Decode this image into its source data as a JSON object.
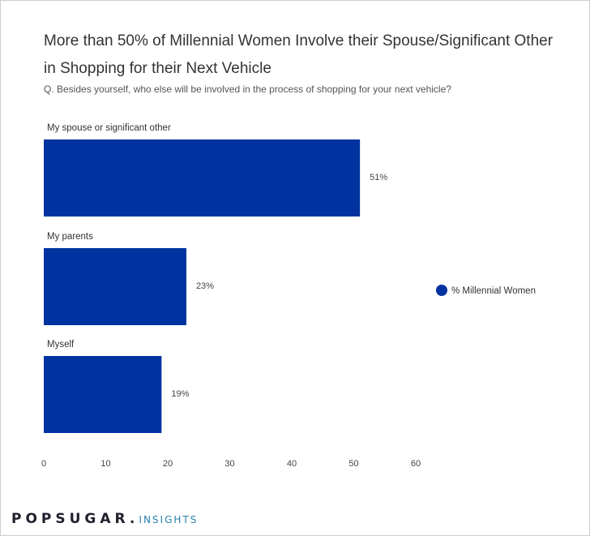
{
  "title": "More than 50% of Millennial Women Involve their Spouse/Significant Other in Shopping for their Next Vehicle",
  "subtitle": "Q. Besides yourself, who else will be involved in the process of shopping for your next vehicle?",
  "logo": {
    "main": "POPSUGAR.",
    "sub": "INSIGHTS"
  },
  "colors": {
    "bar": "#0033A0",
    "text": "#333333",
    "logo_main": "#1f1f2e",
    "logo_sub": "#2a7fb0"
  },
  "chart_data": {
    "type": "bar",
    "orientation": "horizontal",
    "categories": [
      "My spouse or significant other",
      "My parents",
      "Myself"
    ],
    "series": [
      {
        "name": "% Millennial Women",
        "values": [
          51,
          23,
          19
        ],
        "labels": [
          "51%",
          "23%",
          "19%"
        ]
      }
    ],
    "xlim": [
      0,
      60
    ],
    "xticks": [
      "0",
      "10",
      "20",
      "30",
      "40",
      "50",
      "60"
    ],
    "grid": false,
    "legend_position": "right"
  }
}
